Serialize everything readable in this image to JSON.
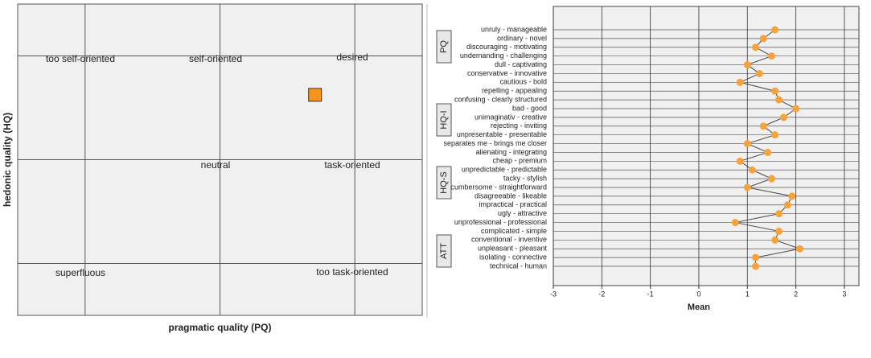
{
  "chart_data": [
    {
      "type": "scatter",
      "xlabel": "pragmatic quality (PQ)",
      "ylabel": "hedonic quality (HQ)",
      "regions": [
        "too self-oriented",
        "self-oriented",
        "desired",
        "neutral",
        "task-oriented",
        "superfluous",
        "too task-oriented"
      ],
      "x": [
        1.41
      ],
      "values": [
        1.25
      ],
      "color": "#f7941d",
      "xlim": [
        -3,
        3
      ],
      "ylim": [
        -3,
        3
      ]
    },
    {
      "type": "profile",
      "xlabel": "Mean",
      "groups": [
        "PQ",
        "HQ-I",
        "HQ-S",
        "ATT"
      ],
      "categories": [
        "unruly - manageable",
        "ordinary - novel",
        "discouraging - motivating",
        "undemanding - challenging",
        "dull - captivating",
        "conservative - innovative",
        "cautious - bold",
        "repelling - appealing",
        "confusing - clearly structured",
        "bad - good",
        "unimaginativ - creative",
        "rejecting - inviting",
        "unpresentable - presentable",
        "separates me - brings me closer",
        "alienating - integrating",
        "cheap - premium",
        "unpredictable - predictable",
        "tacky - stylish",
        "cumbersome - straightforward",
        "disagreeable - likeable",
        "impractical - practical",
        "ugly - attractive",
        "unprofessional - professional",
        "complicated - simple",
        "conventional - inventive",
        "unpleasant - pleasant",
        "isolating - connective",
        "technical - human"
      ],
      "values": [
        1.57,
        1.33,
        1.17,
        1.5,
        1.0,
        1.25,
        0.85,
        1.57,
        1.65,
        2.0,
        1.75,
        1.33,
        1.57,
        1.0,
        1.42,
        0.85,
        1.1,
        1.5,
        1.0,
        1.92,
        1.83,
        1.65,
        0.75,
        1.65,
        1.57,
        2.08,
        1.17,
        1.17
      ],
      "color": "#f5a33a",
      "xlim": [
        -3,
        3.3
      ],
      "xticks": [
        -3,
        -2,
        -1,
        0,
        1,
        2,
        3
      ],
      "grid": true
    }
  ]
}
